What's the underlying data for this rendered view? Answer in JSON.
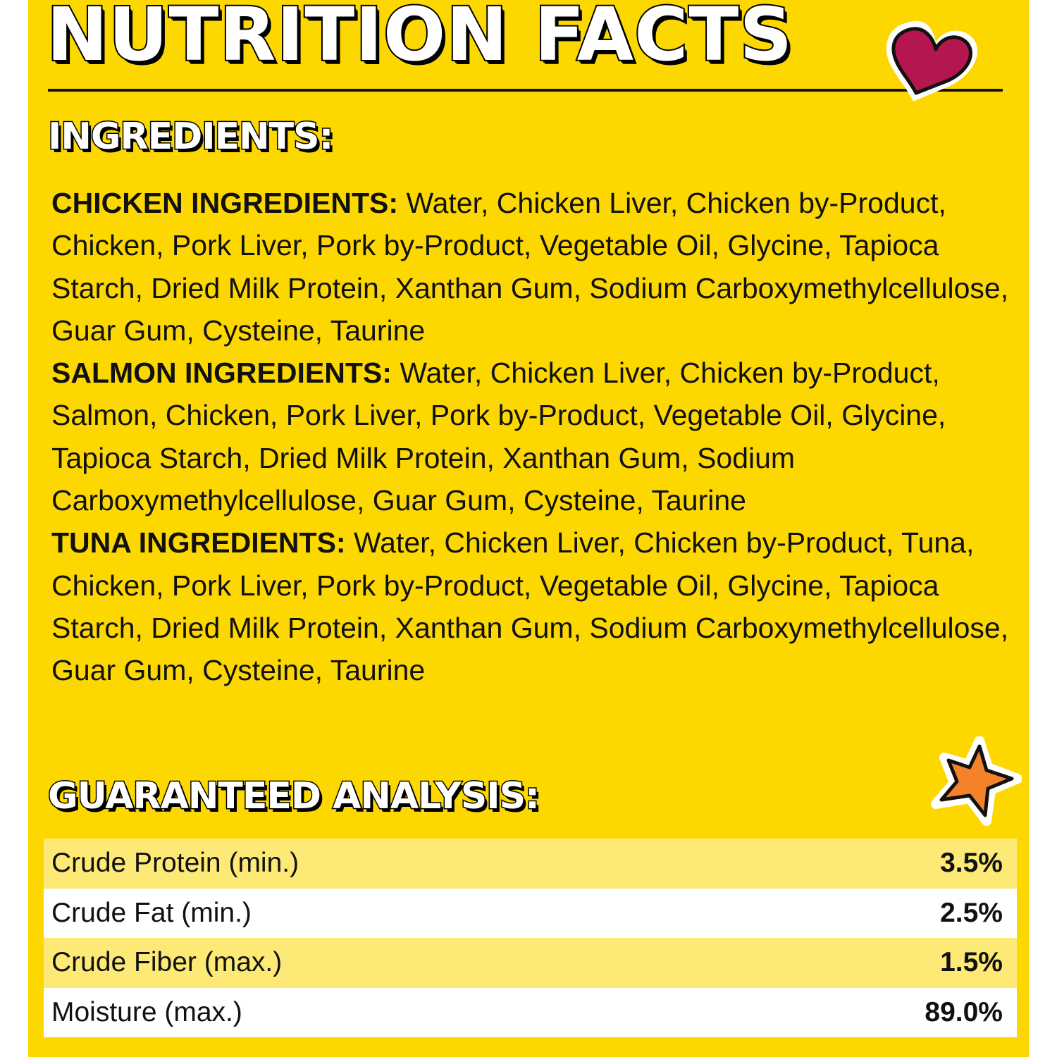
{
  "title": "NUTRITION FACTS",
  "ingredients_heading": "INGREDIENTS:",
  "ingredients": [
    {
      "label": "CHICKEN INGREDIENTS:",
      "text": "Water, Chicken Liver, Chicken by-Product, Chicken, Pork Liver, Pork by-Product, Vegetable Oil, Glycine, Tapioca Starch, Dried Milk Protein, Xanthan Gum, Sodium Carboxymethylcellulose, Guar Gum, Cysteine, Taurine"
    },
    {
      "label": "SALMON INGREDIENTS:",
      "text": "Water, Chicken Liver, Chicken by-Product, Salmon, Chicken, Pork Liver, Pork by-Product, Vegetable Oil, Glycine, Tapioca Starch, Dried Milk Protein, Xanthan Gum, Sodium Carboxymethylcellulose, Guar Gum, Cysteine, Taurine"
    },
    {
      "label": "TUNA INGREDIENTS:",
      "text": "Water, Chicken Liver, Chicken by-Product, Tuna, Chicken, Pork Liver, Pork by-Product, Vegetable Oil, Glycine, Tapioca Starch, Dried Milk Protein, Xanthan Gum, Sodium Carboxymethylcellulose, Guar Gum, Cysteine, Taurine"
    }
  ],
  "analysis_heading": "GUARANTEED ANALYSIS:",
  "analysis": [
    {
      "label": "Crude Protein (min.)",
      "value": "3.5%"
    },
    {
      "label": "Crude Fat (min.)",
      "value": "2.5%"
    },
    {
      "label": "Crude Fiber (max.)",
      "value": "1.5%"
    },
    {
      "label": "Moisture (max.)",
      "value": "89.0%"
    }
  ],
  "decorations": {
    "heart": "heart-icon",
    "star": "star-icon"
  },
  "colors": {
    "background": "#FDD800",
    "row_alt": "#FDEA76",
    "heart": "#B5164F",
    "star": "#F5822A"
  }
}
